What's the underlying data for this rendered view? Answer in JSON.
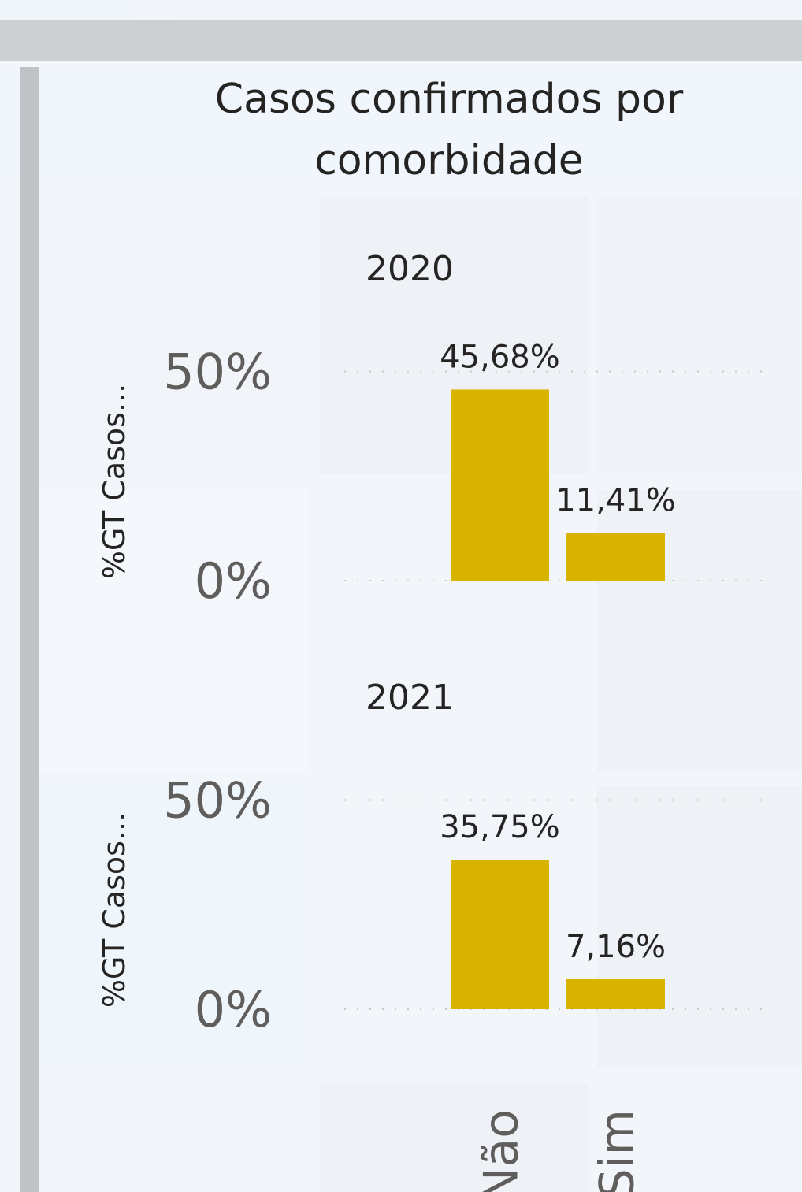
{
  "title": "Casos confirmados por comorbidade",
  "chart_data": [
    {
      "type": "bar",
      "title": "2020",
      "y_label": "%GT Casos...",
      "values": [
        45.68,
        11.41
      ],
      "value_labels": [
        "45,68%",
        "11,41%"
      ],
      "color": "#d8b400",
      "ylim": [
        0,
        55
      ],
      "yticks": [
        {
          "value": 0,
          "label": "0%"
        },
        {
          "value": 50,
          "label": "50%"
        }
      ],
      "grid": true
    },
    {
      "type": "bar",
      "title": "2021",
      "y_label": "%GT Casos...",
      "categories": [
        "Não",
        "Sim"
      ],
      "values": [
        35.75,
        7.16
      ],
      "value_labels": [
        "35,75%",
        "7,16%"
      ],
      "color": "#d8b400",
      "ylim": [
        0,
        55
      ],
      "yticks": [
        {
          "value": 0,
          "label": "0%"
        },
        {
          "value": 50,
          "label": "50%"
        }
      ],
      "grid": true
    }
  ]
}
